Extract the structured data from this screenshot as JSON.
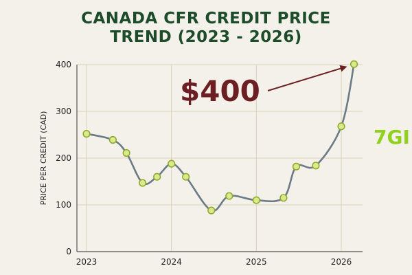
{
  "chart_data": {
    "type": "line",
    "title_lines": [
      "CANADA CFR CREDIT PRICE",
      "TREND (2023 - 2026)"
    ],
    "xlabel": "",
    "ylabel": "PRICE PER CREDIT (CAD)",
    "xlim": [
      2023,
      2026.2
    ],
    "ylim": [
      0,
      400
    ],
    "x_ticks": [
      2023,
      2024,
      2025,
      2026
    ],
    "x_tick_labels": [
      "2023",
      "2024",
      "2025",
      "2026"
    ],
    "y_ticks": [
      0,
      100,
      200,
      300,
      400
    ],
    "y_tick_labels": [
      "0",
      "100",
      "200",
      "300",
      "400"
    ],
    "grid": true,
    "x": [
      2023.0,
      2023.31,
      2023.47,
      2023.66,
      2023.83,
      2024.0,
      2024.17,
      2024.47,
      2024.68,
      2025.0,
      2025.32,
      2025.47,
      2025.7,
      2026.0,
      2026.15
    ],
    "values": [
      252,
      239,
      211,
      147,
      160,
      188,
      160,
      88,
      119,
      110,
      115,
      182,
      184,
      268,
      401
    ],
    "annotation": "$400",
    "colors": {
      "line": "#6b7b86",
      "marker_fill": "#dcea8e",
      "marker_stroke": "#8faa2d",
      "grid": "#d9d1b8",
      "title": "#1d4c2a",
      "annotation": "#6b1f22",
      "logo": "#8fd11d"
    }
  },
  "logo_text": "7GI"
}
